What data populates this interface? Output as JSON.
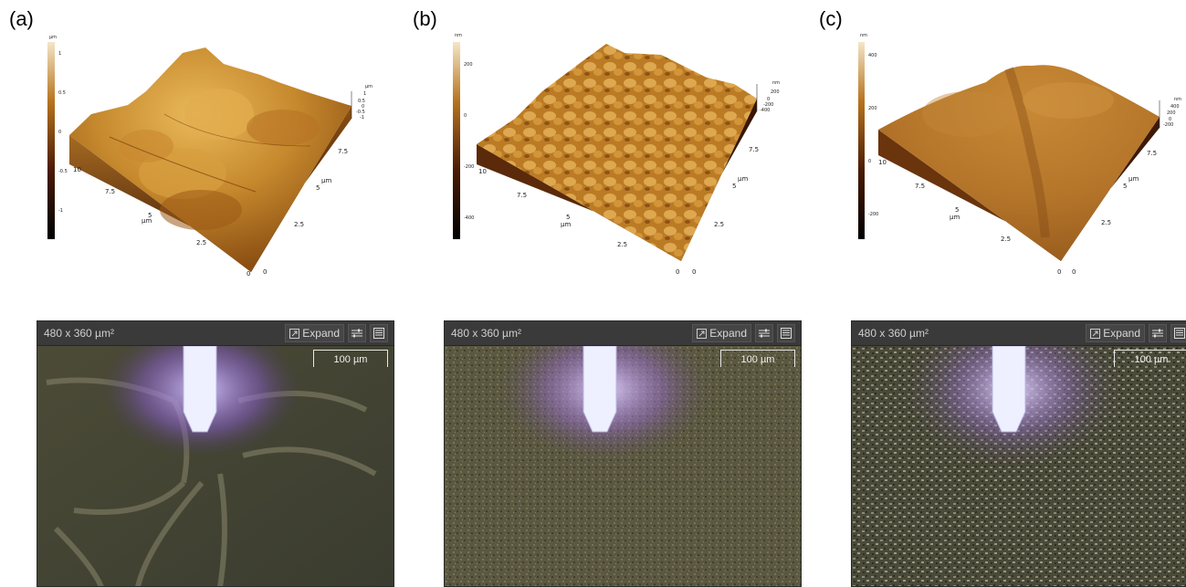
{
  "panels": [
    {
      "letter": "(a)",
      "afm": {
        "colorbar_unit": "µm",
        "colorbar_ticks": [
          "1",
          "0.5",
          "0",
          "-0.5",
          "-1"
        ],
        "x_axis_label": "µm",
        "x_ticks": [
          "10",
          "7.5",
          "5",
          "2.5",
          "0"
        ],
        "y_axis_label": "µm",
        "y_ticks": [
          "0",
          "2.5",
          "5",
          "7.5"
        ],
        "z_unit": "µm",
        "z_ticks": [
          "1",
          "0.5",
          "0",
          "-0.5",
          "-1"
        ]
      },
      "micro": {
        "dims": "480 x 360 µm²",
        "expand": "Expand",
        "scalebar": "100 µm",
        "variant": "grain-boundaries"
      }
    },
    {
      "letter": "(b)",
      "afm": {
        "colorbar_unit": "nm",
        "colorbar_ticks": [
          "200",
          "0",
          "-200",
          "-400"
        ],
        "x_axis_label": "µm",
        "x_ticks": [
          "10",
          "7.5",
          "5",
          "2.5",
          "0"
        ],
        "y_axis_label": "µm",
        "y_ticks": [
          "0",
          "2.5",
          "5",
          "7.5"
        ],
        "z_unit": "nm",
        "z_ticks": [
          "200",
          "0",
          "-200",
          "-400"
        ]
      },
      "micro": {
        "dims": "480 x 360 µm²",
        "expand": "Expand",
        "scalebar": "100 µm",
        "variant": "fine-grain"
      }
    },
    {
      "letter": "(c)",
      "afm": {
        "colorbar_unit": "nm",
        "colorbar_ticks": [
          "400",
          "200",
          "0",
          "-200"
        ],
        "x_axis_label": "µm",
        "x_ticks": [
          "10",
          "7.5",
          "5",
          "2.5",
          "0"
        ],
        "y_axis_label": "µm",
        "y_ticks": [
          "0",
          "2.5",
          "5",
          "7.5"
        ],
        "z_unit": "nm",
        "z_ticks": [
          "400",
          "200",
          "0",
          "-200"
        ]
      },
      "micro": {
        "dims": "480 x 360 µm²",
        "expand": "Expand",
        "scalebar": "100 µm",
        "variant": "coarse-speckle"
      }
    }
  ],
  "colors": {
    "afm_light": "#e7b652",
    "afm_mid": "#a86a1c",
    "afm_dark": "#3b1706",
    "probe": "#cdb6ff",
    "micro_bg_a": "#3f4130",
    "micro_bg_b": "#5f5a42",
    "micro_bg_c": "#4a4a3c",
    "toolbar": "#3a3a3a"
  }
}
